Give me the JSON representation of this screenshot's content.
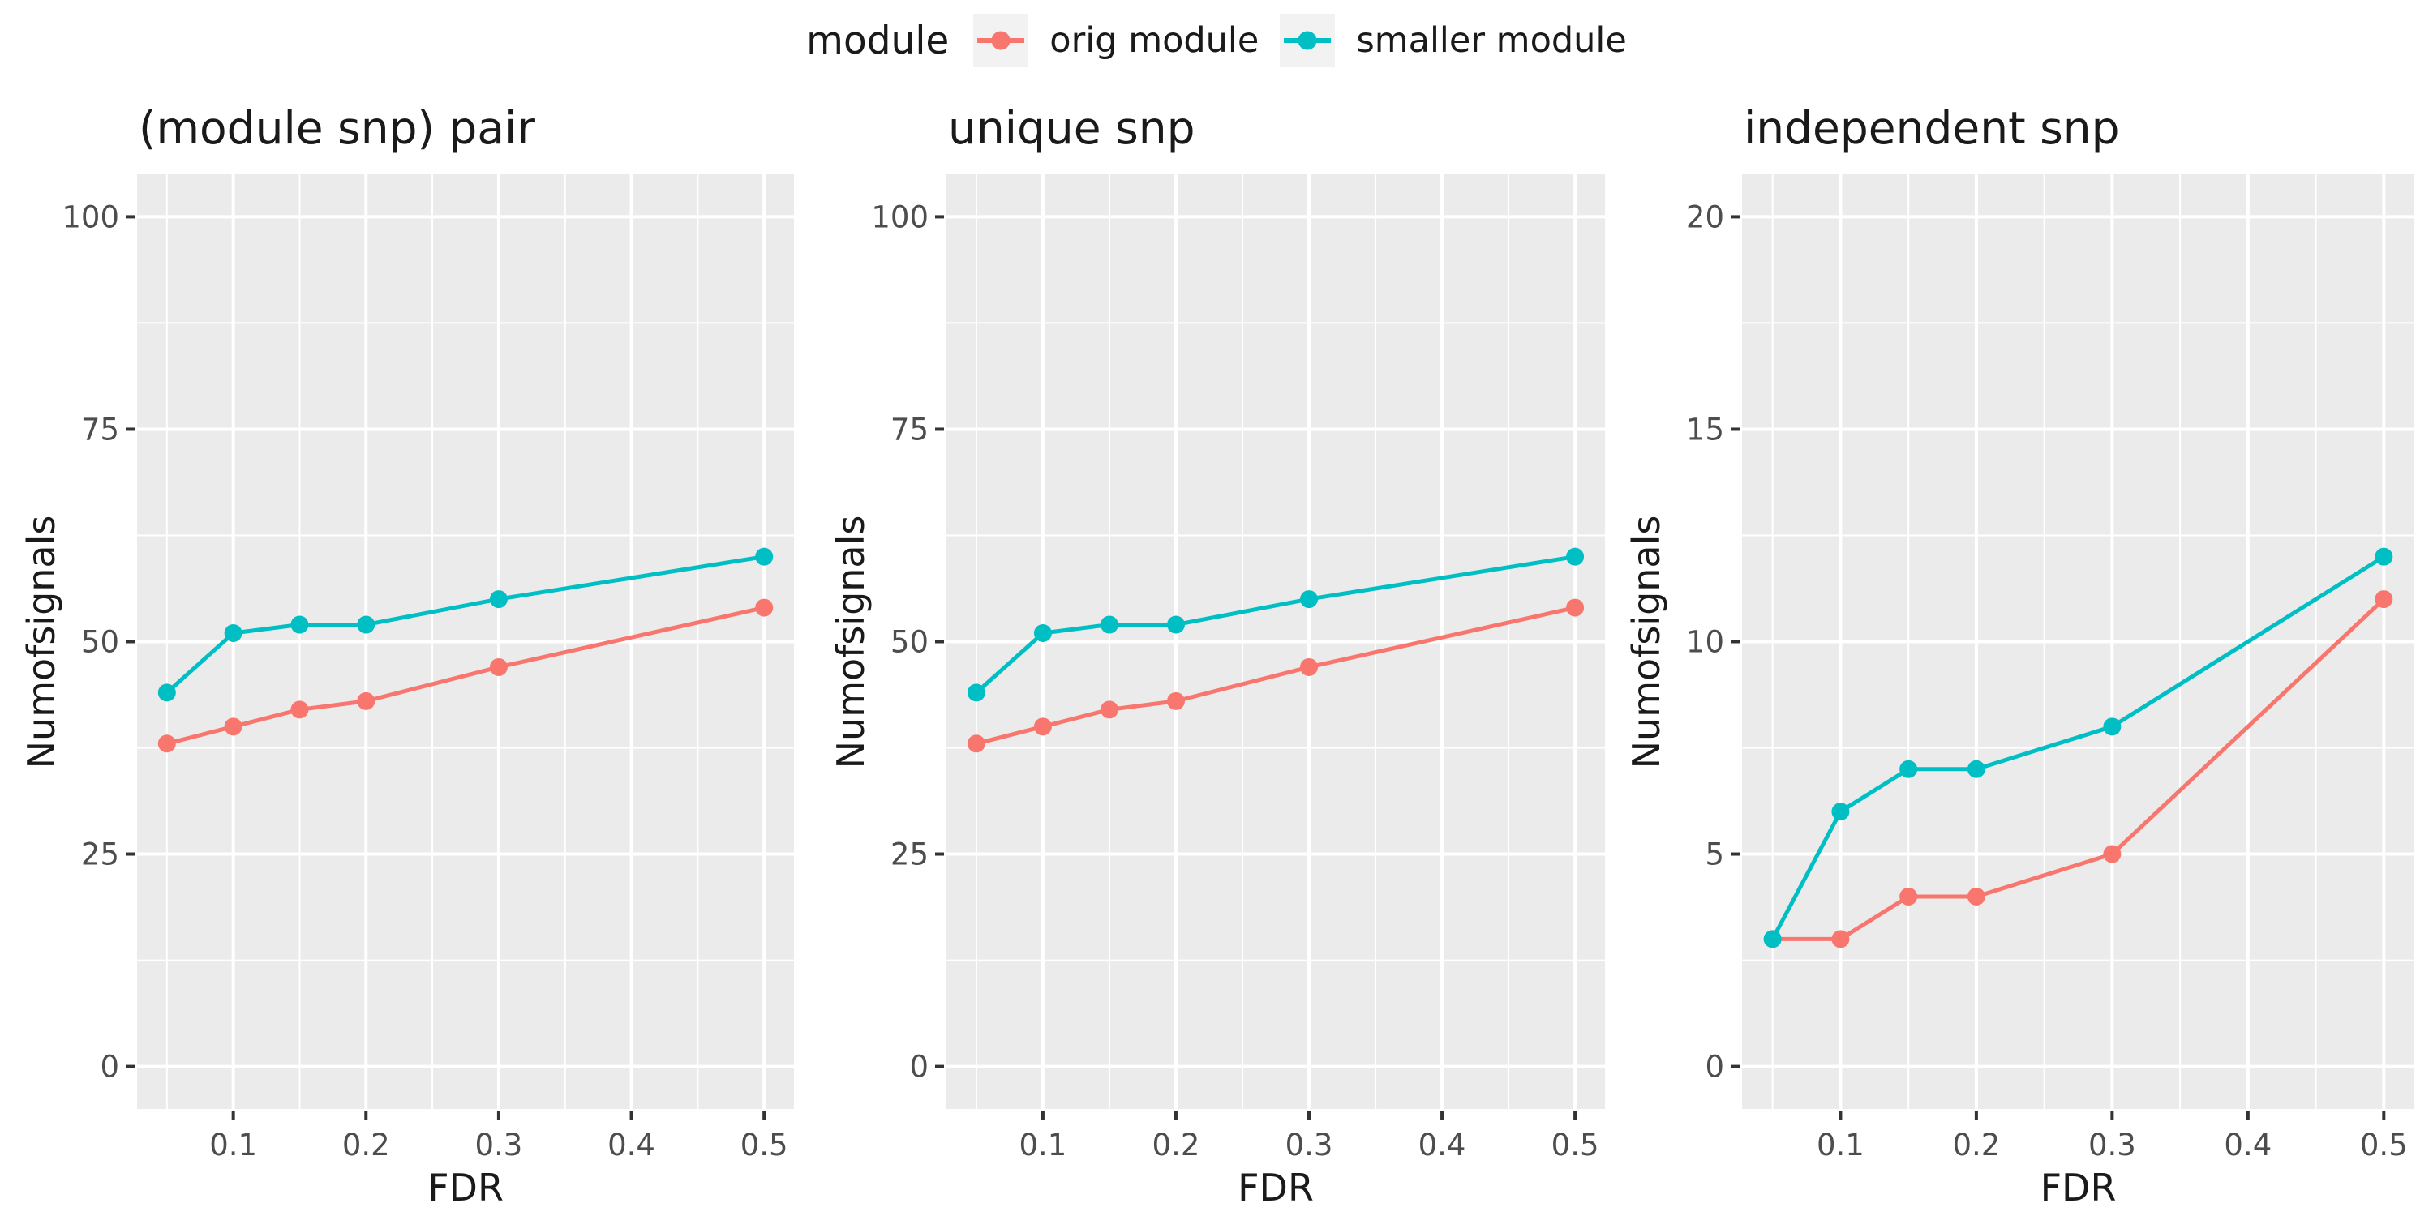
{
  "colors": {
    "orig": "#F8766D",
    "smaller": "#00BFC4",
    "panel_bg": "#EBEBEB",
    "grid": "#FFFFFF",
    "tick_label": "#4D4D4D",
    "tick_mark": "#333333",
    "text": "#1a1a1a",
    "legend_key_bg": "#F2F2F2"
  },
  "legend": {
    "title": "module",
    "entries": [
      {
        "label": "orig module",
        "series": "orig"
      },
      {
        "label": "smaller module",
        "series": "smaller"
      }
    ]
  },
  "chart_data": [
    {
      "type": "line",
      "title": "(module snp) pair",
      "xlabel": "FDR",
      "ylabel": "Numofsignals",
      "x": [
        0.05,
        0.1,
        0.15,
        0.2,
        0.3,
        0.5
      ],
      "series": [
        {
          "name": "orig module",
          "color_key": "orig",
          "values": [
            38,
            40,
            42,
            43,
            47,
            54
          ]
        },
        {
          "name": "smaller module",
          "color_key": "smaller",
          "values": [
            44,
            51,
            52,
            52,
            55,
            60
          ]
        }
      ],
      "xlim": [
        0.0275,
        0.5225
      ],
      "ylim": [
        -5,
        105
      ],
      "xticks": [
        0.1,
        0.2,
        0.3,
        0.4,
        0.5
      ],
      "xticks_minor": [
        0.05,
        0.15,
        0.25,
        0.35,
        0.45
      ],
      "yticks": [
        0,
        25,
        50,
        75,
        100
      ],
      "yticks_minor": [
        12.5,
        37.5,
        62.5,
        87.5
      ],
      "grid": true,
      "legend_position": "top"
    },
    {
      "type": "line",
      "title": "unique snp",
      "xlabel": "FDR",
      "ylabel": "Numofsignals",
      "x": [
        0.05,
        0.1,
        0.15,
        0.2,
        0.3,
        0.5
      ],
      "series": [
        {
          "name": "orig module",
          "color_key": "orig",
          "values": [
            38,
            40,
            42,
            43,
            47,
            54
          ]
        },
        {
          "name": "smaller module",
          "color_key": "smaller",
          "values": [
            44,
            51,
            52,
            52,
            55,
            60
          ]
        }
      ],
      "xlim": [
        0.0275,
        0.5225
      ],
      "ylim": [
        -5,
        105
      ],
      "xticks": [
        0.1,
        0.2,
        0.3,
        0.4,
        0.5
      ],
      "xticks_minor": [
        0.05,
        0.15,
        0.25,
        0.35,
        0.45
      ],
      "yticks": [
        0,
        25,
        50,
        75,
        100
      ],
      "yticks_minor": [
        12.5,
        37.5,
        62.5,
        87.5
      ],
      "grid": true,
      "legend_position": "top"
    },
    {
      "type": "line",
      "title": "independent snp",
      "xlabel": "FDR",
      "ylabel": "Numofsignals",
      "x": [
        0.05,
        0.1,
        0.15,
        0.2,
        0.3,
        0.5
      ],
      "series": [
        {
          "name": "orig module",
          "color_key": "orig",
          "values": [
            3,
            3,
            4,
            4,
            5,
            11
          ]
        },
        {
          "name": "smaller module",
          "color_key": "smaller",
          "values": [
            3,
            6,
            7,
            7,
            8,
            12
          ]
        }
      ],
      "xlim": [
        0.0275,
        0.5225
      ],
      "ylim": [
        -1,
        21
      ],
      "xticks": [
        0.1,
        0.2,
        0.3,
        0.4,
        0.5
      ],
      "xticks_minor": [
        0.05,
        0.15,
        0.25,
        0.35,
        0.45
      ],
      "yticks": [
        0,
        5,
        10,
        15,
        20
      ],
      "yticks_minor": [
        2.5,
        7.5,
        12.5,
        17.5
      ],
      "grid": true,
      "legend_position": "top"
    }
  ]
}
